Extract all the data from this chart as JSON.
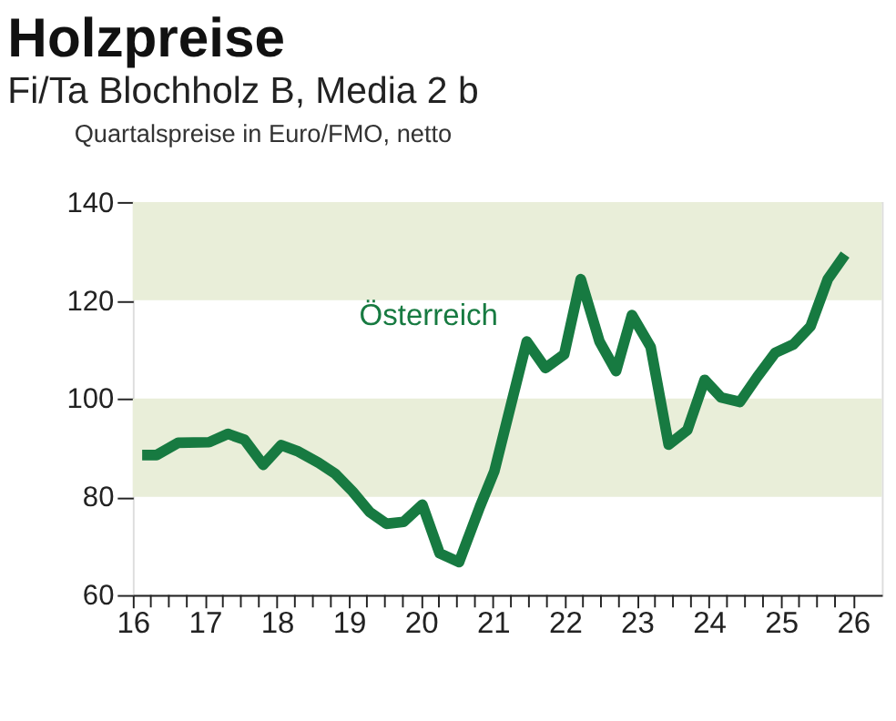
{
  "chart_data": {
    "type": "line",
    "title": "Holzpreise",
    "subtitle": "Fi/Ta Blochholz B, Media 2 b",
    "annotations": [
      "Quartalspreise in Euro/FMO, netto"
    ],
    "series": [
      {
        "name": "Österreich",
        "color": "#177a41",
        "x": [
          16.13,
          16.33,
          16.63,
          17.06,
          17.32,
          17.55,
          17.81,
          18.06,
          18.3,
          18.58,
          18.81,
          19.05,
          19.29,
          19.52,
          19.76,
          20.02,
          20.26,
          20.53,
          20.82,
          21.02,
          21.47,
          21.73,
          21.99,
          22.22,
          22.48,
          22.71,
          22.93,
          23.19,
          23.44,
          23.7,
          23.94,
          24.17,
          24.43,
          24.67,
          24.92,
          25.17,
          25.41,
          25.65,
          25.89
        ],
        "values": [
          88.5,
          88.5,
          91,
          91.1,
          92.8,
          91.6,
          86.5,
          90.5,
          89.2,
          86.9,
          84.7,
          81.1,
          76.9,
          74.5,
          74.9,
          78.4,
          68.5,
          66.7,
          78,
          85.2,
          111.6,
          106.2,
          109,
          124.3,
          111.6,
          105.6,
          117,
          110.5,
          90.6,
          93.6,
          103.8,
          100.2,
          99.3,
          104.4,
          109.3,
          111,
          114.7,
          124.3,
          129.3
        ]
      }
    ],
    "xlim": [
      16,
      26.4
    ],
    "xticks": [
      16,
      {
        "value": 16.25,
        "label": null
      },
      {
        "value": 16.5,
        "label": null
      },
      {
        "value": 16.75,
        "label": null
      },
      17,
      {
        "value": 17.25,
        "label": null
      },
      {
        "value": 17.5,
        "label": null
      },
      {
        "value": 17.75,
        "label": null
      },
      18,
      {
        "value": 18.25,
        "label": null
      },
      {
        "value": 18.5,
        "label": null
      },
      {
        "value": 18.75,
        "label": null
      },
      19,
      {
        "value": 19.25,
        "label": null
      },
      {
        "value": 19.5,
        "label": null
      },
      {
        "value": 19.75,
        "label": null
      },
      20,
      {
        "value": 20.25,
        "label": null
      },
      {
        "value": 20.5,
        "label": null
      },
      {
        "value": 20.75,
        "label": null
      },
      21,
      {
        "value": 21.25,
        "label": null
      },
      {
        "value": 21.5,
        "label": null
      },
      {
        "value": 21.75,
        "label": null
      },
      22,
      {
        "value": 22.25,
        "label": null
      },
      {
        "value": 22.5,
        "label": null
      },
      {
        "value": 22.75,
        "label": null
      },
      23,
      {
        "value": 23.25,
        "label": null
      },
      {
        "value": 23.5,
        "label": null
      },
      {
        "value": 23.75,
        "label": null
      },
      24,
      {
        "value": 24.25,
        "label": null
      },
      {
        "value": 24.5,
        "label": null
      },
      {
        "value": 24.75,
        "label": null
      },
      25,
      {
        "value": 25.25,
        "label": null
      },
      {
        "value": 25.5,
        "label": null
      },
      {
        "value": 25.75,
        "label": null
      },
      26
    ],
    "ylim": [
      60,
      140
    ],
    "yticks": [
      60,
      80,
      100,
      120,
      140
    ],
    "bands": [
      {
        "axis": "y",
        "from": 80,
        "to": 100,
        "color": "#e9eed9"
      },
      {
        "axis": "y",
        "from": 120,
        "to": 140,
        "color": "#e9eed9"
      }
    ],
    "grid": false,
    "marker": "none",
    "line_style": "solid"
  }
}
